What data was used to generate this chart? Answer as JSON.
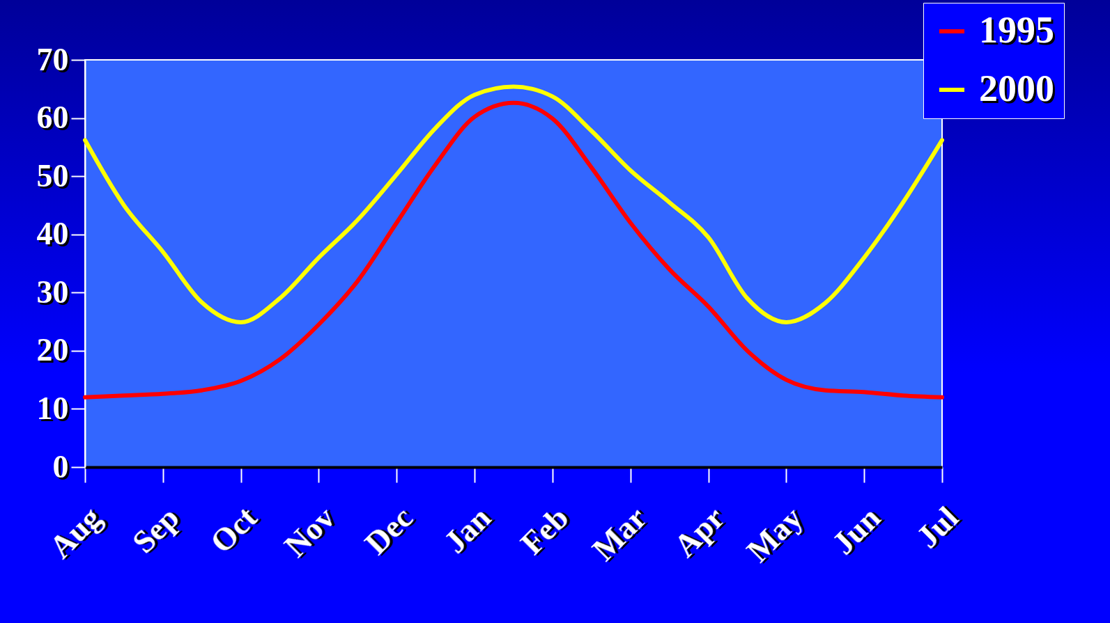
{
  "chart_data": {
    "type": "line",
    "categories": [
      "Aug",
      null,
      "Sep",
      null,
      "Oct",
      null,
      "Nov",
      null,
      "Dec",
      null,
      "Jan",
      null,
      "Feb",
      null,
      "Mar",
      null,
      "Apr",
      null,
      "May",
      null,
      "Jun",
      null,
      "Jul"
    ],
    "ylim": [
      0,
      70
    ],
    "yticks": [
      0,
      10,
      20,
      30,
      40,
      50,
      60,
      70
    ],
    "grid": false,
    "legend": "top right",
    "marker": "none",
    "line_style": "solid",
    "series": [
      {
        "name": "1995",
        "color": "#ff0000",
        "values": [
          12,
          12.3,
          12.6,
          13.2,
          14.8,
          18.5,
          24.5,
          32,
          42,
          52,
          60.2,
          62.6,
          59.9,
          51.5,
          42,
          34,
          27.6,
          20,
          15,
          13.2,
          12.9,
          12.3,
          12
        ]
      },
      {
        "name": "2000",
        "color": "#ffff00",
        "values": [
          56.2,
          45,
          37,
          28.3,
          24.9,
          29,
          36,
          42.5,
          50.3,
          58.3,
          64,
          65.4,
          63.7,
          57.8,
          51,
          45.5,
          39.5,
          29,
          24.9,
          28.2,
          36,
          45.5,
          56.2
        ]
      }
    ]
  }
}
